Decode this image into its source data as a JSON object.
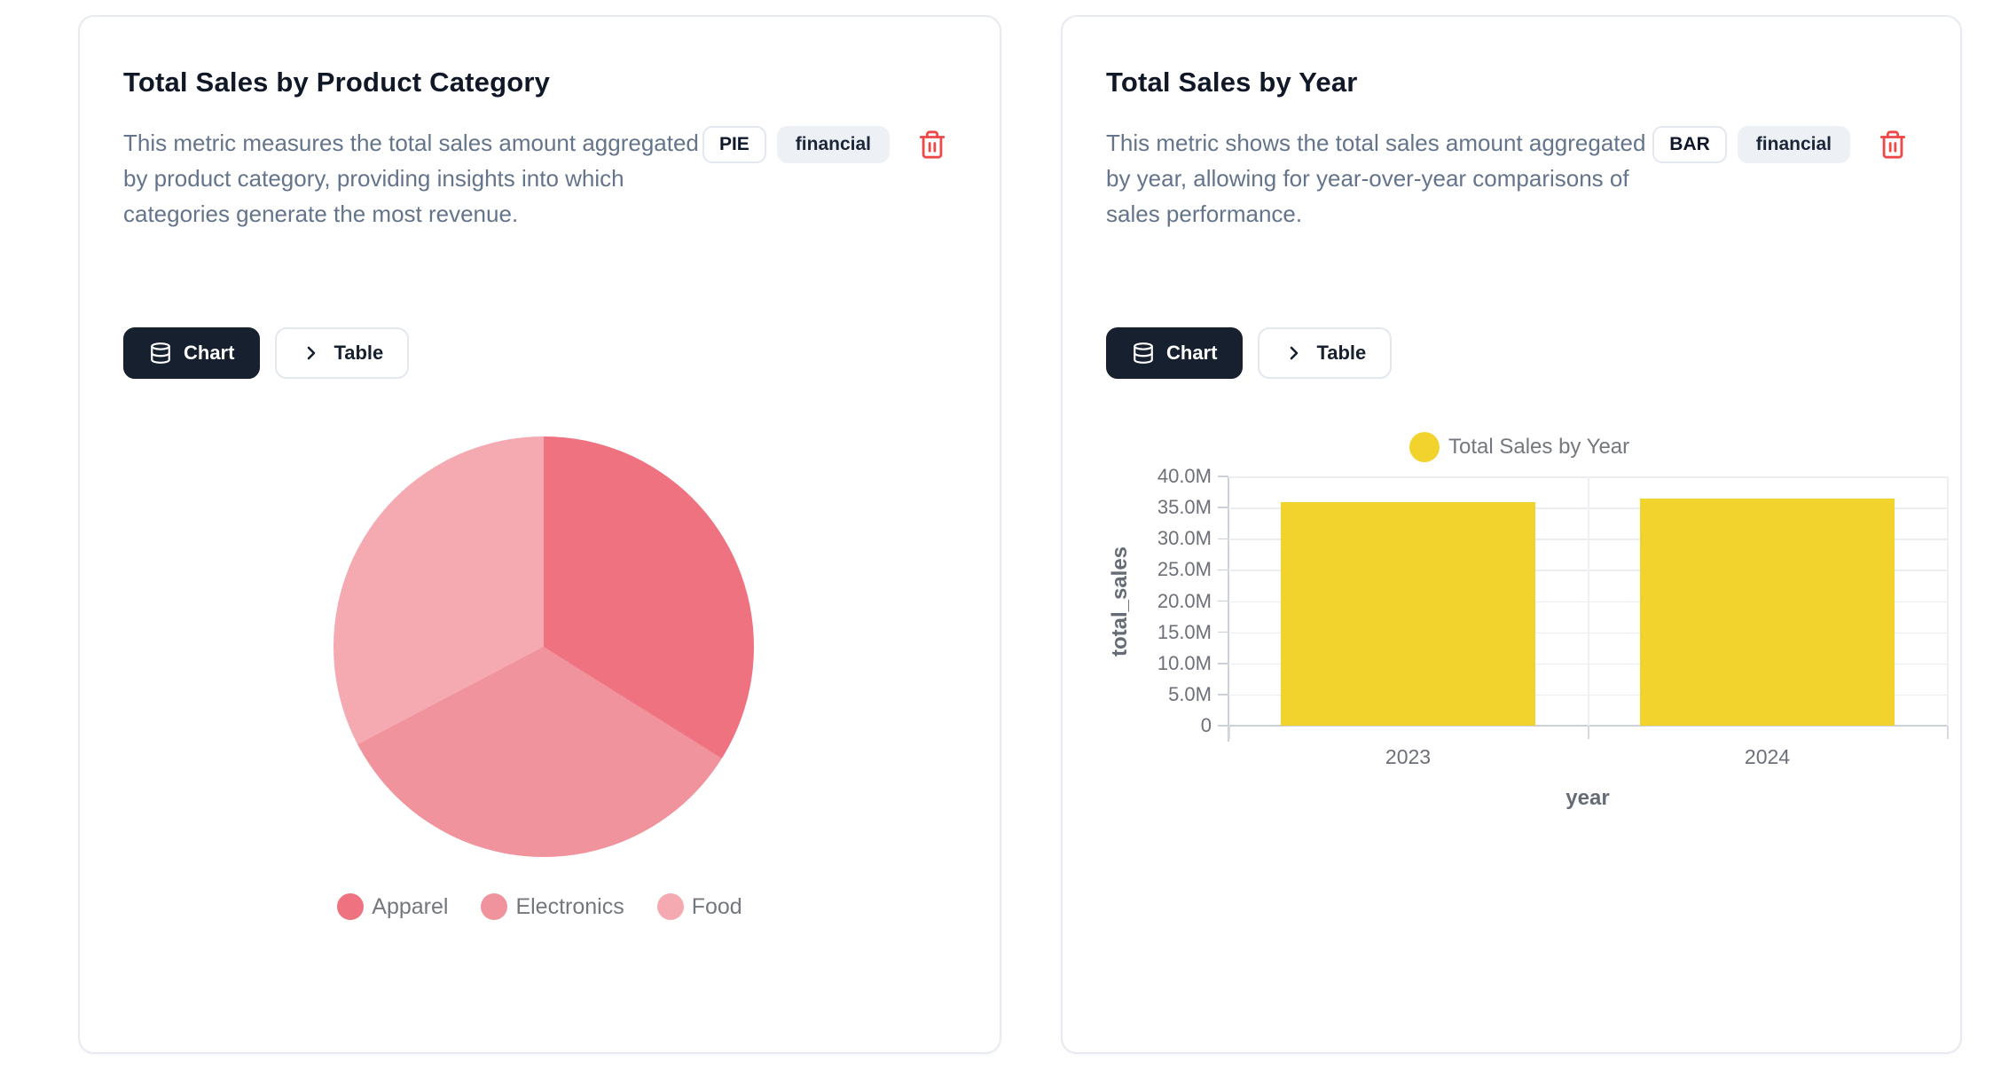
{
  "cards": [
    {
      "title": "Total Sales by Product Category",
      "description": "This metric measures the total sales amount aggregated by product category, providing insights into which categories generate the most revenue.",
      "type_badge": "PIE",
      "tag_badge": "financial",
      "buttons": {
        "chart": "Chart",
        "table": "Table"
      }
    },
    {
      "title": "Total Sales by Year",
      "description": "This metric shows the total sales amount aggregated by year, allowing for year-over-year comparisons of sales performance.",
      "type_badge": "BAR",
      "tag_badge": "financial",
      "buttons": {
        "chart": "Chart",
        "table": "Table"
      }
    }
  ],
  "chart_data": [
    {
      "type": "pie",
      "title": "Total Sales by Product Category",
      "categories": [
        "Apparel",
        "Electronics",
        "Food"
      ],
      "shares_pct": [
        33.9,
        33.4,
        32.7
      ],
      "colors": [
        "#ee7280",
        "#f1939c",
        "#f5a9b0"
      ],
      "legend_position": "bottom"
    },
    {
      "type": "bar",
      "title": "Total Sales by Year",
      "legend": "Total Sales by Year",
      "categories": [
        "2023",
        "2024"
      ],
      "values": [
        35900000,
        36500000
      ],
      "xlabel": "year",
      "ylabel": "total_sales",
      "ylim": [
        0,
        40000000
      ],
      "y_ticks": [
        "40.0M",
        "35.0M",
        "30.0M",
        "25.0M",
        "20.0M",
        "15.0M",
        "10.0M",
        "5.0M",
        "0"
      ],
      "bar_color": "#f2d32d",
      "grid": true,
      "legend_position": "top"
    }
  ],
  "colors": {
    "accent_dark": "#16202f",
    "danger": "#ee4949",
    "title_text": "#101828",
    "muted_text": "#64748b",
    "axis_text": "#6e7079"
  }
}
